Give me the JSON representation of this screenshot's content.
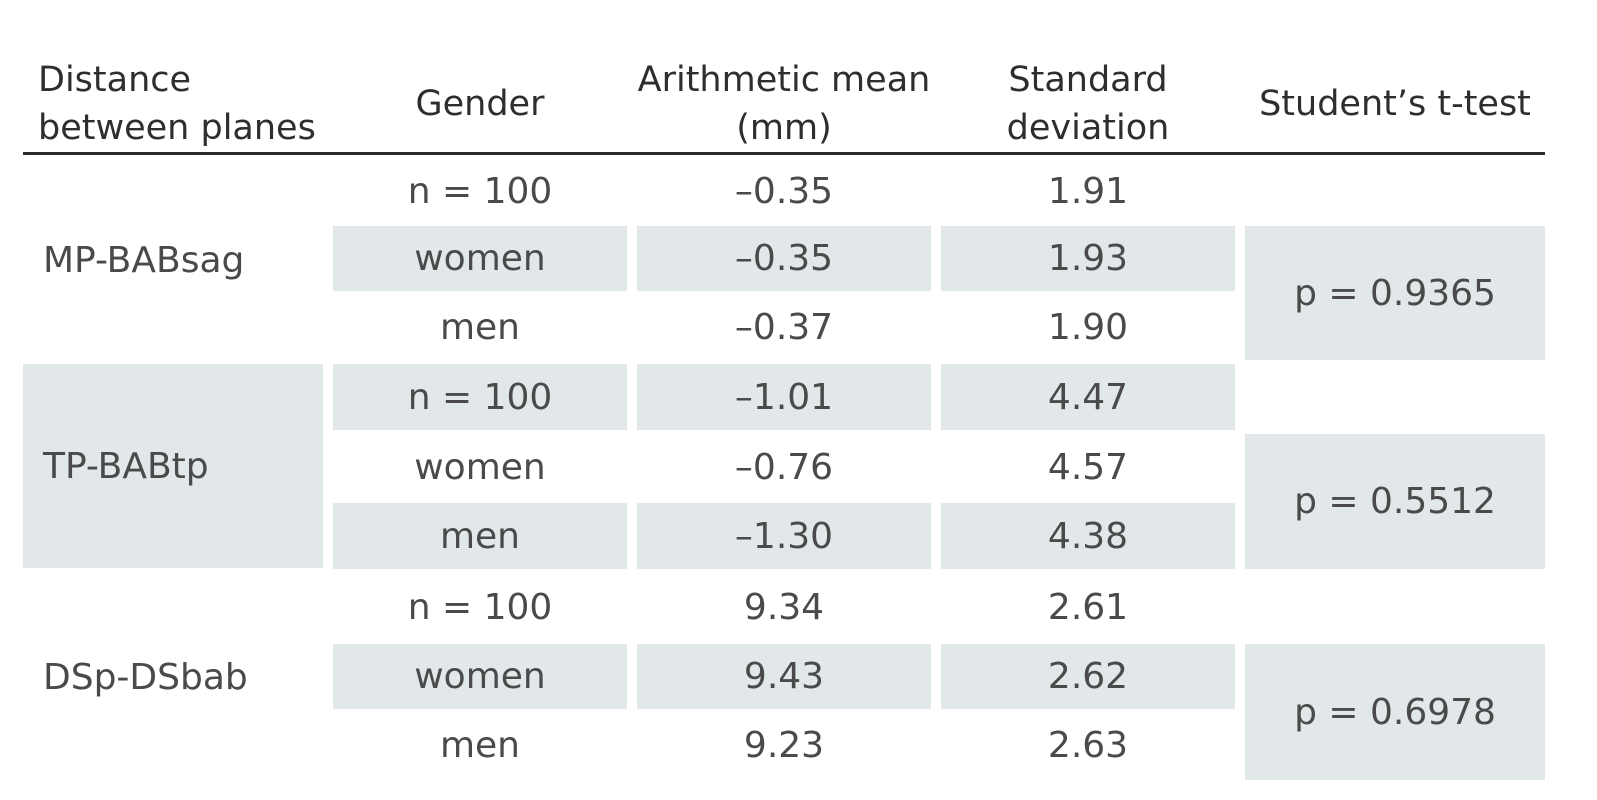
{
  "header": {
    "distance": "Distance between planes",
    "gender": "Gender",
    "mean": "Arithmetic mean (mm)",
    "sd": "Standard deviation",
    "ttest": "Student’s t-test"
  },
  "groups": [
    {
      "label": "MP-BABsag",
      "rows": [
        {
          "gender": "n = 100",
          "mean": "–0.35",
          "sd": "1.91"
        },
        {
          "gender": "women",
          "mean": "–0.35",
          "sd": "1.93"
        },
        {
          "gender": "men",
          "mean": "–0.37",
          "sd": "1.90"
        }
      ],
      "p": "p = 0.9365"
    },
    {
      "label": "TP-BABtp",
      "rows": [
        {
          "gender": "n = 100",
          "mean": "–1.01",
          "sd": "4.47"
        },
        {
          "gender": "women",
          "mean": "–0.76",
          "sd": "4.57"
        },
        {
          "gender": "men",
          "mean": "–1.30",
          "sd": "4.38"
        }
      ],
      "p": "p = 0.5512"
    },
    {
      "label": "DSp-DSbab",
      "rows": [
        {
          "gender": "n = 100",
          "mean": "9.34",
          "sd": "2.61"
        },
        {
          "gender": "women",
          "mean": "9.43",
          "sd": "2.62"
        },
        {
          "gender": "men",
          "mean": "9.23",
          "sd": "2.63"
        }
      ],
      "p": "p = 0.6978"
    }
  ],
  "colors": {
    "shade": "#e2e8ea",
    "rule": "#2b2b2b"
  }
}
